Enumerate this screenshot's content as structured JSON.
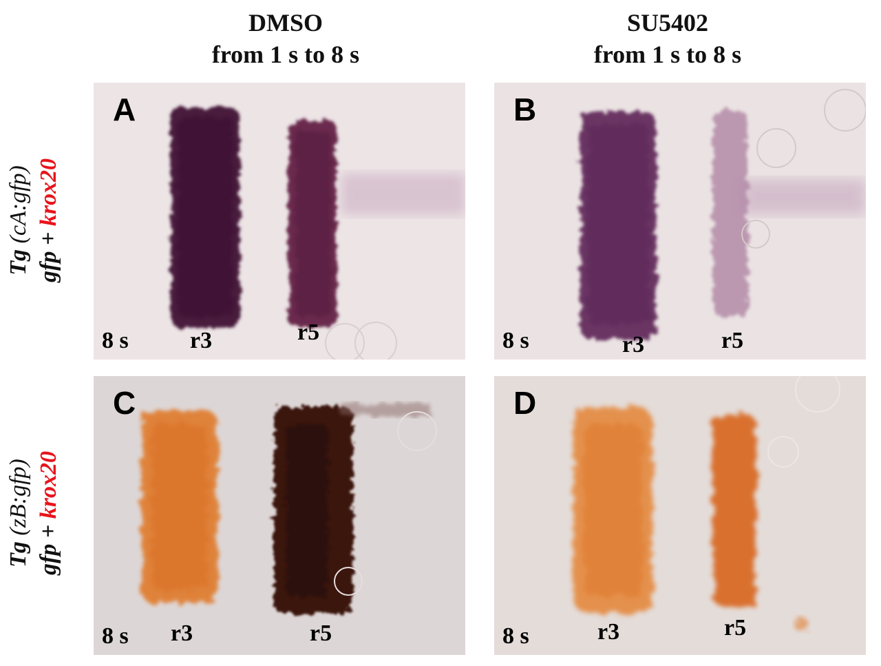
{
  "columns": [
    {
      "treatment": "DMSO",
      "timing": "from 1 s to 8 s"
    },
    {
      "treatment": "SU5402",
      "timing": "from 1 s to 8 s"
    }
  ],
  "rows": [
    {
      "transgene_prefix": "Tg ",
      "transgene_paren": "(cA:gfp)",
      "probe_gfp": "gfp + ",
      "probe_krox": "krox20"
    },
    {
      "transgene_prefix": "Tg ",
      "transgene_paren": "(zB:gfp)",
      "probe_gfp": "gfp + ",
      "probe_krox": "krox20"
    }
  ],
  "panels": {
    "a": {
      "letter": "A",
      "stage": "8 s",
      "r3": "r3",
      "r5": "r5"
    },
    "b": {
      "letter": "B",
      "stage": "8 s",
      "r3": "r3",
      "r5": "r5"
    },
    "c": {
      "letter": "C",
      "stage": "8 s",
      "r3": "r3",
      "r5": "r5"
    },
    "d": {
      "letter": "D",
      "stage": "8 s",
      "r3": "r3",
      "r5": "r5"
    }
  },
  "colors": {
    "purple_stain": "#4a1a3c",
    "orange_stain": "#e07a2a",
    "dark_brown_stain": "#3a1410",
    "krox20_label": "#e8141b"
  }
}
